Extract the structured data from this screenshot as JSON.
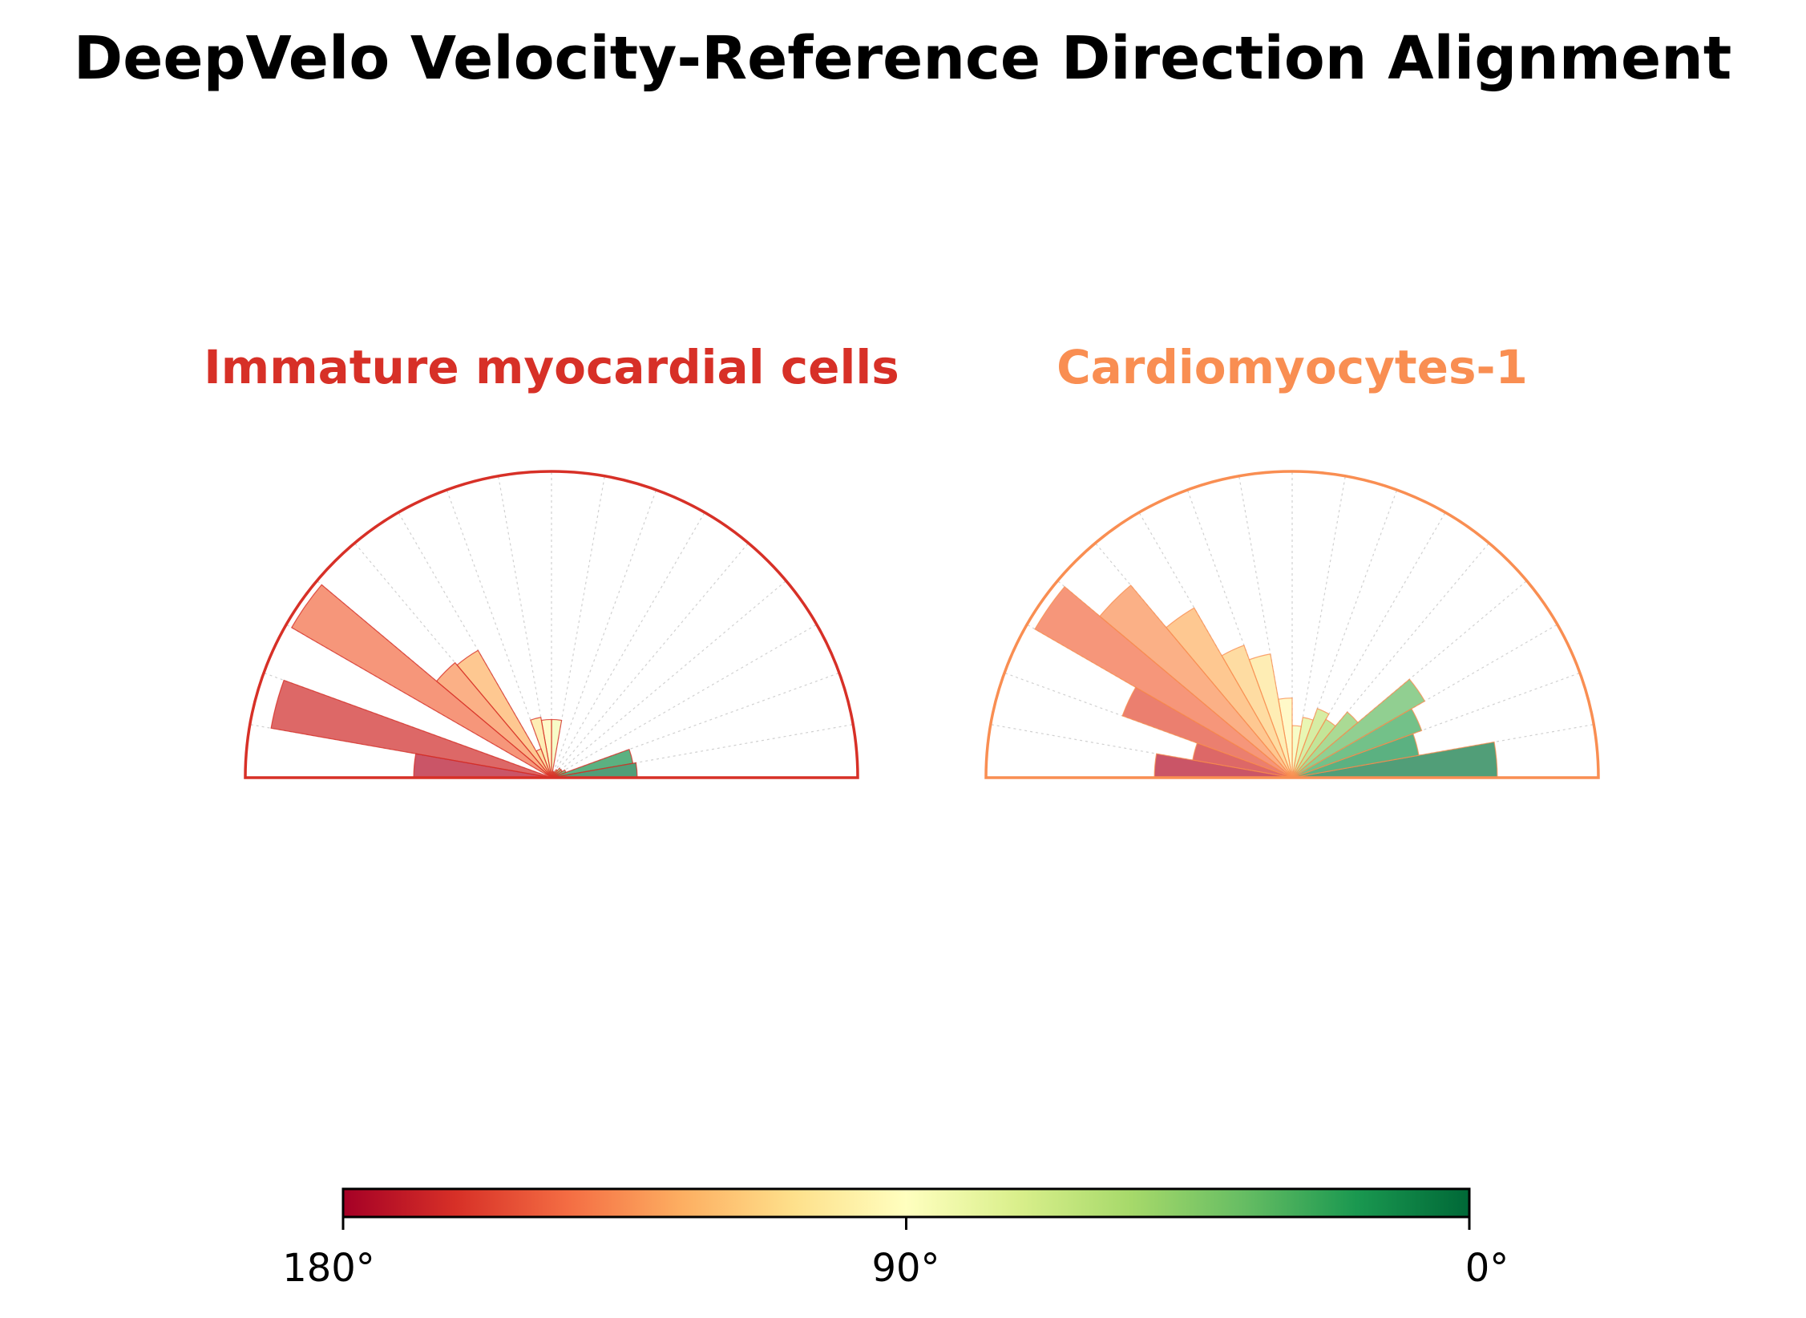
{
  "title": "DeepVelo Velocity-Reference Direction Alignment",
  "chart_data": [
    {
      "type": "polar-histogram",
      "title": "Immature myocardial cells",
      "title_color": "#d73027",
      "theta_range_deg": [
        0,
        180
      ],
      "bin_width_deg": 10,
      "bin_centers_deg": [
        5,
        15,
        25,
        35,
        45,
        55,
        65,
        75,
        85,
        95,
        105,
        115,
        125,
        135,
        145,
        155,
        165,
        175
      ],
      "values": [
        0.28,
        0.27,
        0.05,
        0.04,
        0.04,
        0.03,
        0.02,
        0.02,
        0.19,
        0.19,
        0.2,
        0.1,
        0.48,
        0.49,
        0.98,
        0,
        0.93,
        0.45
      ],
      "rmax": 1.0
    },
    {
      "type": "polar-histogram",
      "title": "Cardiomyocytes-1",
      "title_color": "#f98e52",
      "theta_range_deg": [
        0,
        180
      ],
      "bin_width_deg": 10,
      "bin_centers_deg": [
        5,
        15,
        25,
        35,
        45,
        55,
        65,
        75,
        85,
        95,
        105,
        115,
        125,
        135,
        145,
        155,
        165,
        175
      ],
      "values": [
        0.67,
        0.42,
        0.45,
        0.5,
        0.28,
        0.22,
        0.24,
        0.2,
        0.17,
        0.26,
        0.41,
        0.46,
        0.64,
        0.82,
        0.97,
        0.59,
        0.33,
        0.45
      ],
      "rmax": 1.0
    }
  ],
  "colorbar": {
    "colormap": "RdYlGn",
    "tick_labels": [
      "180°",
      "90°",
      "0°"
    ],
    "range_deg": [
      180,
      0
    ]
  }
}
